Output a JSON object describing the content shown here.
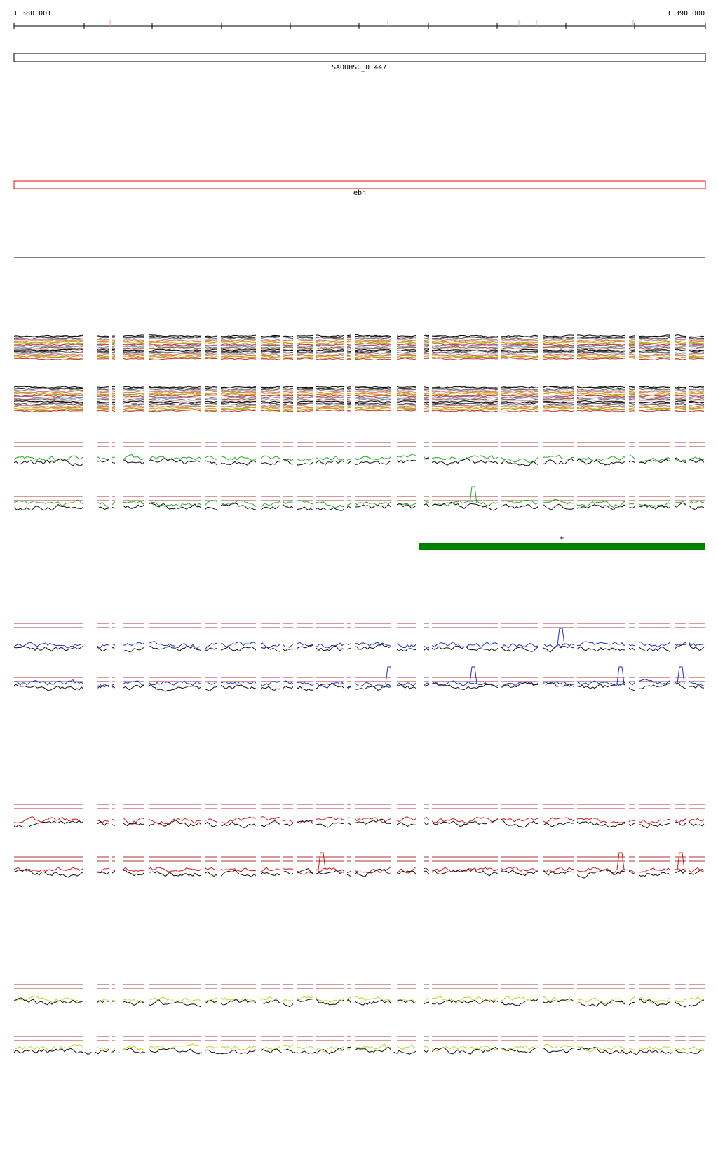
{
  "ruler": {
    "start_label": "1 380 001",
    "end_label": "1 390 000"
  },
  "features": [
    {
      "name": "SAOUHSC_01447",
      "color": "#000000"
    },
    {
      "name": "ebh",
      "color": "#ff0000"
    }
  ],
  "segment": {
    "label": "+",
    "color": "#008000"
  },
  "colors": {
    "threshold": "#aa3333",
    "green": "#22aa22",
    "blue": "#1a2fd0",
    "red": "#dd1111",
    "yellow": "#c8d020",
    "dark": "#111111",
    "tick_pink": "#ff9999"
  }
}
